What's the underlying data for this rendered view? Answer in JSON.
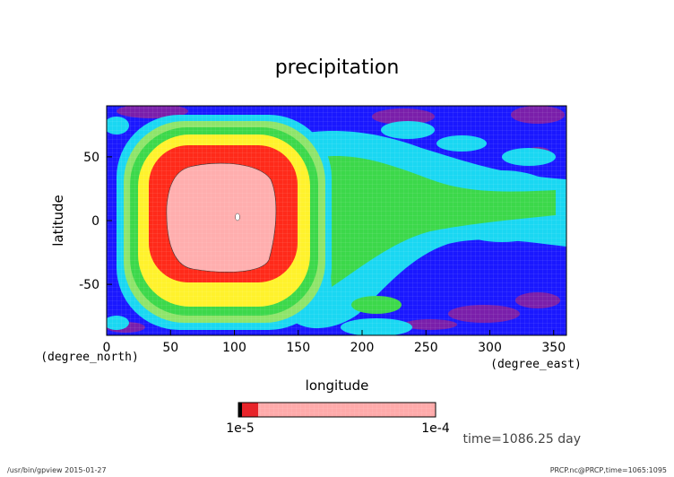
{
  "chart_data": {
    "type": "heatmap",
    "title": "precipitation",
    "xlabel": "longitude",
    "ylabel": "latitude",
    "x_unit": "(degree_east)",
    "y_unit": "(degree_north)",
    "xlim": [
      0,
      360
    ],
    "ylim": [
      -90,
      90
    ],
    "x_ticks": [
      0,
      50,
      100,
      150,
      200,
      250,
      300,
      350
    ],
    "y_ticks": [
      -50,
      0,
      50
    ],
    "time_label": "time=1086.25 day",
    "colorbar": {
      "labels": [
        "1e-5",
        "1e-4"
      ],
      "colors": [
        "#000000",
        "#e8242a",
        "#ffaaaa"
      ]
    },
    "palette": {
      "dark_blue": "#1a18ff",
      "purple": "#7a1faa",
      "cyan": "#1ad7f2",
      "green": "#3cd84a",
      "yellow": "#fff22c",
      "red": "#ff2a1a",
      "pink": "#ffaeae"
    },
    "regions": [
      {
        "name": "background",
        "color": "#1a18ff"
      },
      {
        "name": "band-light-green",
        "color": "#8ee46a"
      },
      {
        "name": "band-green",
        "color": "#3cd84a"
      },
      {
        "name": "band-yellow",
        "color": "#fff22c"
      },
      {
        "name": "band-red",
        "color": "#ff2a1a"
      },
      {
        "name": "core-pink",
        "color": "#ffaeae"
      }
    ]
  },
  "footer": {
    "left": "/usr/bin/gpview  2015-01-27",
    "right": "PRCP.nc@PRCP,time=1065:1095"
  }
}
